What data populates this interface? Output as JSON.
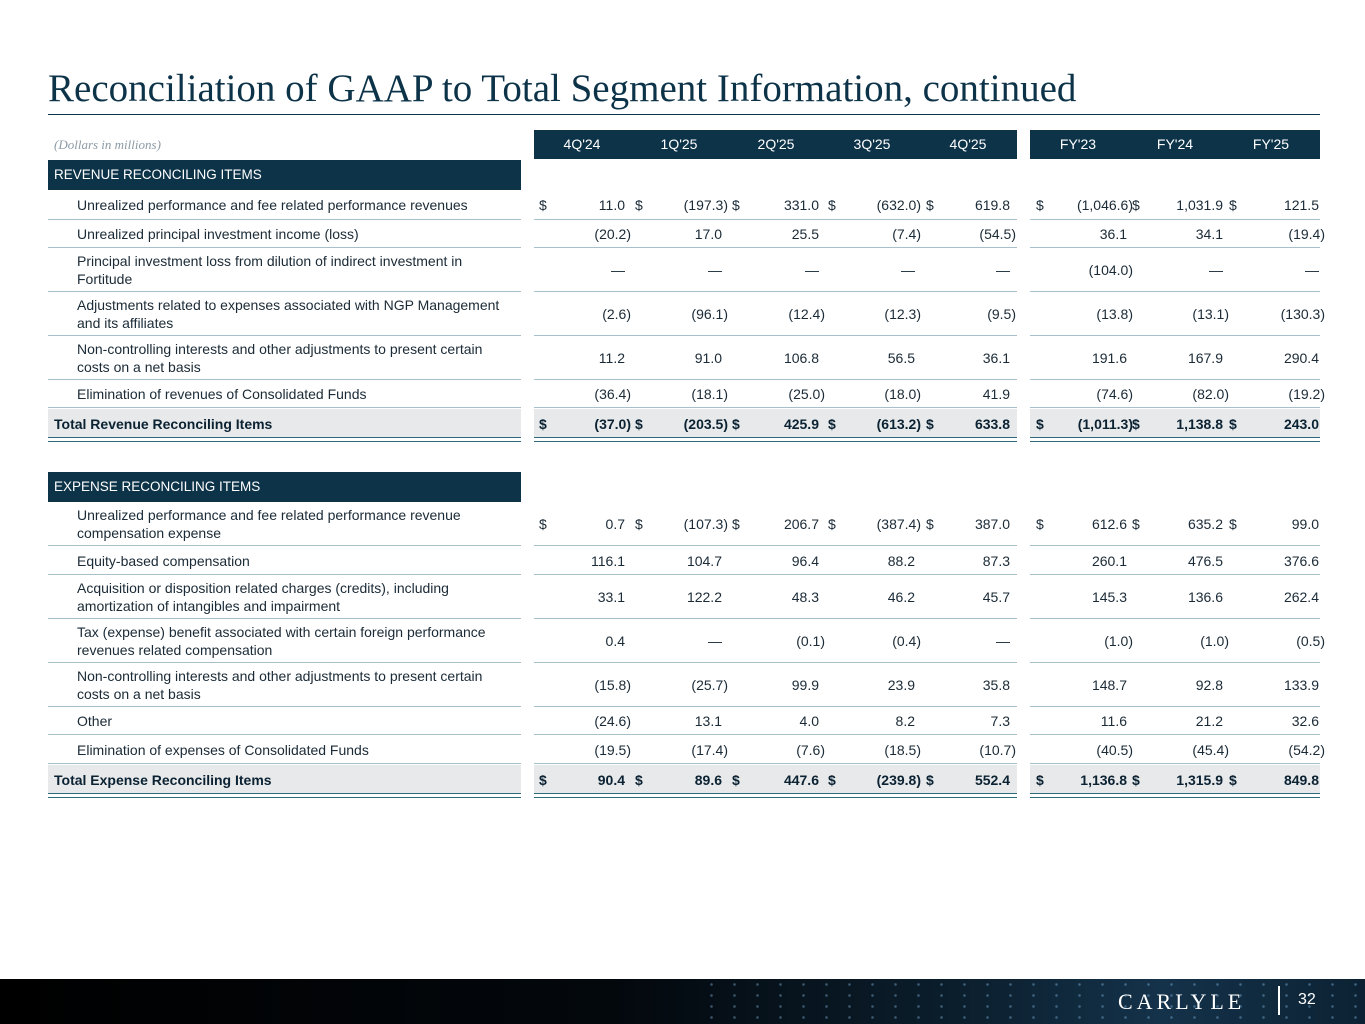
{
  "title": "Reconciliation of GAAP to Total Segment Information, continued",
  "units_note": "(Dollars in millions)",
  "columns": [
    "4Q'24",
    "1Q'25",
    "2Q'25",
    "3Q'25",
    "4Q'25",
    "FY'23",
    "FY'24",
    "FY'25"
  ],
  "currency_symbol": "$",
  "revenue": {
    "section_label": "REVENUE RECONCILING ITEMS",
    "rows": [
      {
        "label": "Unrealized performance and fee related performance revenues",
        "values": [
          "11.0",
          "(197.3)",
          "331.0",
          "(632.0)",
          "619.8",
          "(1,046.6)",
          "1,031.9",
          "121.5"
        ]
      },
      {
        "label": "Unrealized principal investment income (loss)",
        "values": [
          "(20.2)",
          "17.0",
          "25.5",
          "(7.4)",
          "(54.5)",
          "36.1",
          "34.1",
          "(19.4)"
        ]
      },
      {
        "label": "Principal investment loss from dilution of indirect investment in Fortitude",
        "values": [
          "—",
          "—",
          "—",
          "—",
          "—",
          "(104.0)",
          "—",
          "—"
        ]
      },
      {
        "label": "Adjustments related to expenses associated with NGP Management and its affiliates",
        "values": [
          "(2.6)",
          "(96.1)",
          "(12.4)",
          "(12.3)",
          "(9.5)",
          "(13.8)",
          "(13.1)",
          "(130.3)"
        ]
      },
      {
        "label": "Non-controlling interests and other adjustments to present certain costs on a net basis",
        "values": [
          "11.2",
          "91.0",
          "106.8",
          "56.5",
          "36.1",
          "191.6",
          "167.9",
          "290.4"
        ]
      },
      {
        "label": "Elimination of revenues of Consolidated Funds",
        "values": [
          "(36.4)",
          "(18.1)",
          "(25.0)",
          "(18.0)",
          "41.9",
          "(74.6)",
          "(82.0)",
          "(19.2)"
        ]
      }
    ],
    "total": {
      "label": "Total Revenue Reconciling Items",
      "values": [
        "(37.0)",
        "(203.5)",
        "425.9",
        "(613.2)",
        "633.8",
        "(1,011.3)",
        "1,138.8",
        "243.0"
      ]
    }
  },
  "expense": {
    "section_label": "EXPENSE RECONCILING ITEMS",
    "rows": [
      {
        "label": "Unrealized performance and fee related performance revenue compensation expense",
        "values": [
          "0.7",
          "(107.3)",
          "206.7",
          "(387.4)",
          "387.0",
          "612.6",
          "635.2",
          "99.0"
        ]
      },
      {
        "label": "Equity-based compensation",
        "values": [
          "116.1",
          "104.7",
          "96.4",
          "88.2",
          "87.3",
          "260.1",
          "476.5",
          "376.6"
        ]
      },
      {
        "label": "Acquisition or disposition related charges (credits), including amortization of intangibles and impairment",
        "values": [
          "33.1",
          "122.2",
          "48.3",
          "46.2",
          "45.7",
          "145.3",
          "136.6",
          "262.4"
        ]
      },
      {
        "label": "Tax (expense) benefit associated with certain foreign performance revenues related compensation",
        "values": [
          "0.4",
          "—",
          "(0.1)",
          "(0.4)",
          "—",
          "(1.0)",
          "(1.0)",
          "(0.5)"
        ]
      },
      {
        "label": "Non-controlling interests and other adjustments to present certain costs on a net basis",
        "values": [
          "(15.8)",
          "(25.7)",
          "99.9",
          "23.9",
          "35.8",
          "148.7",
          "92.8",
          "133.9"
        ]
      },
      {
        "label": "Other",
        "values": [
          "(24.6)",
          "13.1",
          "4.0",
          "8.2",
          "7.3",
          "11.6",
          "21.2",
          "32.6"
        ]
      },
      {
        "label": "Elimination of expenses of Consolidated Funds",
        "values": [
          "(19.5)",
          "(17.4)",
          "(7.6)",
          "(18.5)",
          "(10.7)",
          "(40.5)",
          "(45.4)",
          "(54.2)"
        ]
      }
    ],
    "total": {
      "label": "Total Expense Reconciling Items",
      "values": [
        "90.4",
        "89.6",
        "447.6",
        "(239.8)",
        "552.4",
        "1,136.8",
        "1,315.9",
        "849.8"
      ]
    }
  },
  "footer": {
    "logo_text": "CARLYLE",
    "page_number": "32"
  },
  "colors": {
    "navy": "#0d3349",
    "rule": "#2e6b7a",
    "total_shade": "#e7e9ea"
  }
}
